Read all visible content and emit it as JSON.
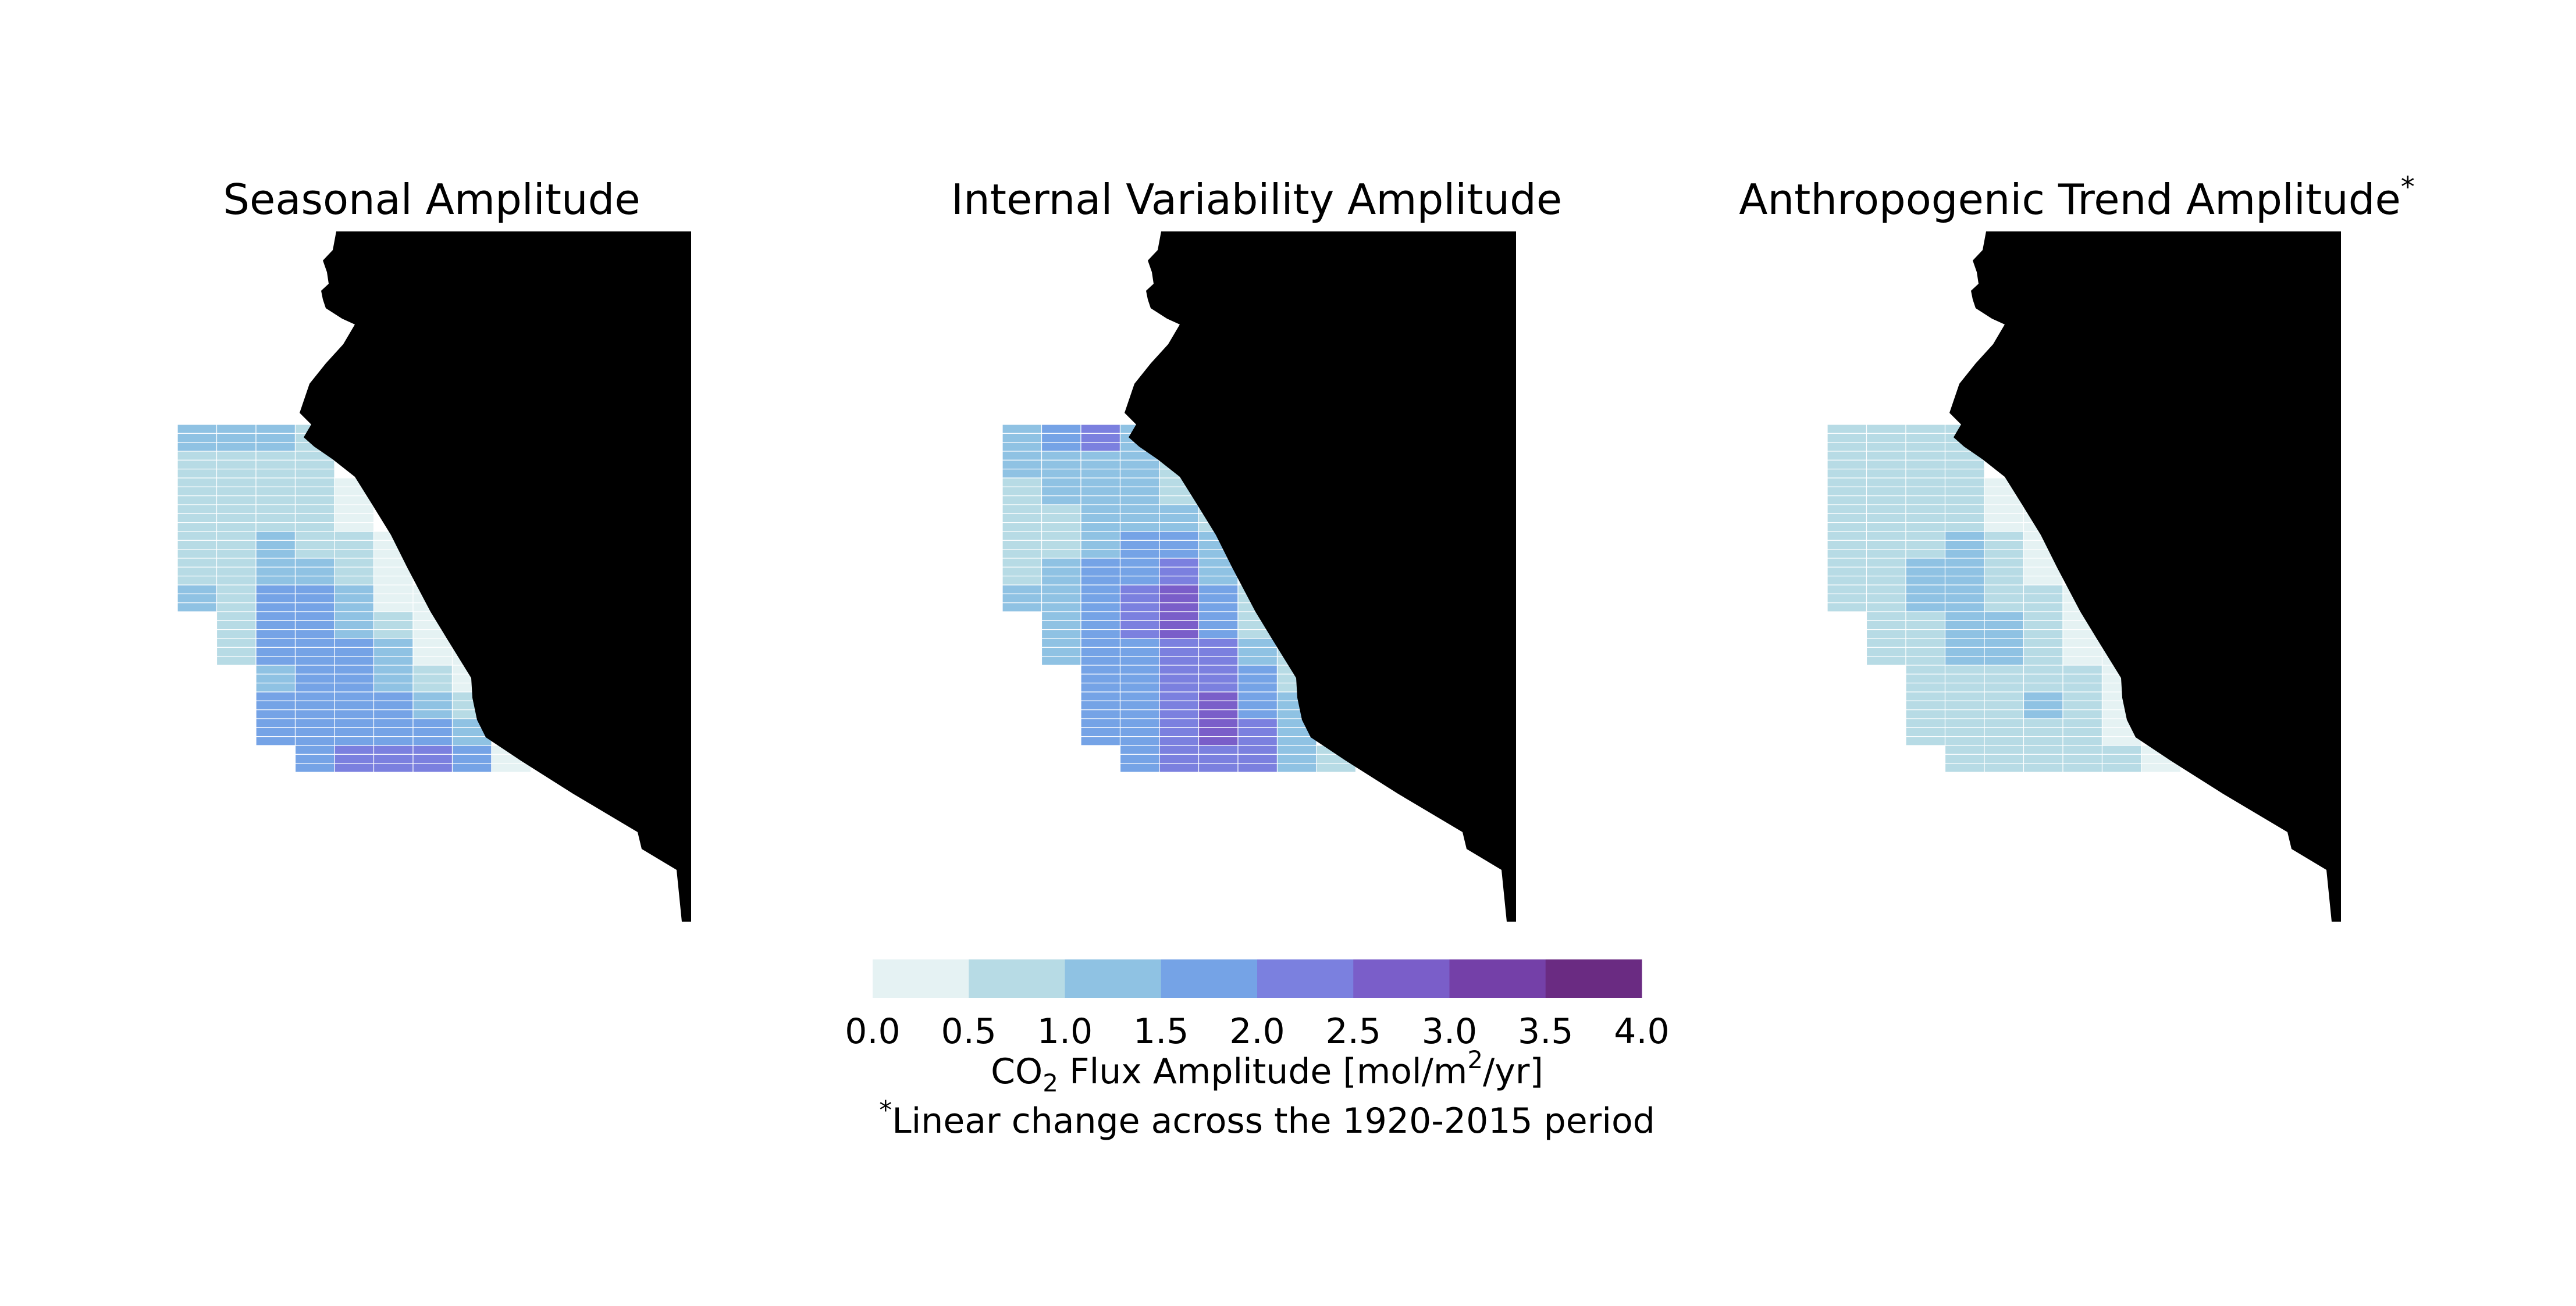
{
  "panels": [
    {
      "title": "Seasonal Amplitude",
      "title_marker": ""
    },
    {
      "title": "Internal Variability Amplitude",
      "title_marker": ""
    },
    {
      "title": "Anthropogenic Trend Amplitude",
      "title_marker": "*"
    }
  ],
  "colorbar": {
    "ticks": [
      "0.0",
      "0.5",
      "1.0",
      "1.5",
      "2.0",
      "2.5",
      "3.0",
      "3.5",
      "4.0"
    ],
    "bins": [
      0,
      0.5,
      1,
      1.5,
      2,
      2.5,
      3,
      3.5,
      4
    ],
    "colors": [
      "#e5f2f3",
      "#b7dbe5",
      "#8fc2e3",
      "#75a3e6",
      "#7b80df",
      "#7a5ec9",
      "#7440a8",
      "#6a2b82",
      "#5a1a5a",
      "#3a1028"
    ],
    "label_main": "CO",
    "label_sub": "2",
    "label_mid": " Flux Amplitude [mol/m",
    "label_sup": "2",
    "label_end": "/yr]",
    "footnote_marker": "*",
    "footnote": "Linear change across the 1920-2015 period"
  },
  "land_color": "#000000",
  "gridded_values": {
    "seasonal": [
      [
        1.2,
        1.1,
        1.4,
        0.7,
        null,
        null,
        null,
        null,
        null
      ],
      [
        0.8,
        0.8,
        0.9,
        0.6,
        null,
        null,
        null,
        null,
        null
      ],
      [
        0.7,
        0.7,
        0.8,
        0.8,
        0.2,
        null,
        null,
        null,
        null
      ],
      [
        0.6,
        0.7,
        0.8,
        0.8,
        0.1,
        null,
        null,
        null,
        null
      ],
      [
        0.6,
        0.6,
        1.0,
        0.9,
        0.6,
        0.1,
        null,
        null,
        null
      ],
      [
        0.8,
        0.8,
        1.2,
        1.1,
        0.8,
        0.2,
        null,
        null,
        null
      ],
      [
        1.1,
        0.9,
        1.5,
        1.6,
        1.2,
        0.4,
        0.1,
        null,
        null
      ],
      [
        null,
        0.9,
        1.6,
        1.7,
        1.4,
        0.8,
        0.2,
        null,
        null
      ],
      [
        null,
        0.9,
        1.5,
        1.6,
        1.5,
        1.0,
        0.3,
        0.2,
        null
      ],
      [
        null,
        null,
        1.4,
        1.5,
        1.5,
        1.3,
        0.6,
        0.2,
        null
      ],
      [
        null,
        null,
        1.5,
        1.7,
        1.8,
        1.6,
        1.0,
        0.5,
        null
      ],
      [
        null,
        null,
        1.6,
        1.9,
        1.9,
        1.9,
        1.6,
        1.0,
        null
      ],
      [
        null,
        null,
        null,
        1.7,
        2.1,
        2.2,
        2.2,
        1.5,
        0.4
      ]
    ],
    "internal": [
      [
        1.4,
        1.8,
        2.1,
        1.0,
        null,
        null,
        null,
        null,
        null
      ],
      [
        1.1,
        1.2,
        1.4,
        1.0,
        0.6,
        null,
        null,
        null,
        null
      ],
      [
        0.9,
        1.0,
        1.3,
        1.3,
        0.9,
        null,
        null,
        null,
        null
      ],
      [
        0.6,
        0.8,
        1.0,
        1.4,
        1.4,
        0.8,
        null,
        null,
        null
      ],
      [
        0.7,
        0.8,
        1.3,
        1.5,
        1.6,
        1.1,
        null,
        null,
        null
      ],
      [
        0.9,
        1.1,
        1.5,
        1.9,
        2.2,
        1.4,
        0.4,
        null,
        null
      ],
      [
        1.0,
        1.2,
        1.6,
        2.1,
        2.8,
        1.7,
        0.6,
        null,
        null
      ],
      [
        null,
        1.1,
        1.6,
        2.0,
        2.5,
        1.9,
        0.9,
        null,
        null
      ],
      [
        null,
        1.2,
        1.7,
        1.9,
        2.2,
        2.1,
        1.3,
        0.6,
        null
      ],
      [
        null,
        null,
        1.6,
        1.8,
        2.1,
        2.2,
        1.6,
        0.8,
        null
      ],
      [
        null,
        null,
        1.6,
        1.9,
        2.2,
        2.6,
        1.9,
        1.1,
        null
      ],
      [
        null,
        null,
        1.6,
        1.9,
        2.2,
        2.7,
        2.2,
        1.4,
        null
      ],
      [
        null,
        null,
        null,
        1.6,
        2.0,
        2.3,
        2.1,
        1.4,
        0.9
      ]
    ],
    "anthropogenic": [
      [
        0.6,
        0.6,
        0.6,
        0.5,
        null,
        null,
        null,
        null,
        null
      ],
      [
        0.6,
        0.6,
        0.6,
        0.6,
        null,
        null,
        null,
        null,
        null
      ],
      [
        0.6,
        0.6,
        0.6,
        0.6,
        0.2,
        null,
        null,
        null,
        null
      ],
      [
        0.6,
        0.6,
        0.6,
        0.6,
        0.3,
        0.1,
        null,
        null,
        null
      ],
      [
        0.6,
        0.6,
        0.6,
        1.0,
        0.7,
        0.2,
        null,
        null,
        null
      ],
      [
        0.6,
        0.6,
        1.0,
        1.0,
        0.9,
        0.4,
        null,
        null,
        null
      ],
      [
        0.6,
        0.6,
        1.1,
        1.1,
        0.9,
        0.6,
        0.2,
        null,
        null
      ],
      [
        null,
        0.6,
        0.8,
        1.1,
        1.0,
        0.7,
        0.3,
        null,
        null
      ],
      [
        null,
        0.6,
        0.7,
        1.0,
        1.0,
        0.8,
        0.4,
        0.1,
        null
      ],
      [
        null,
        null,
        0.6,
        0.7,
        0.9,
        0.8,
        0.5,
        0.2,
        null
      ],
      [
        null,
        null,
        0.6,
        0.7,
        0.7,
        1.1,
        0.6,
        0.3,
        null
      ],
      [
        null,
        null,
        0.6,
        0.6,
        0.6,
        0.7,
        0.6,
        0.4,
        null
      ],
      [
        null,
        null,
        null,
        0.6,
        0.6,
        0.6,
        0.6,
        0.6,
        0.4
      ]
    ]
  }
}
